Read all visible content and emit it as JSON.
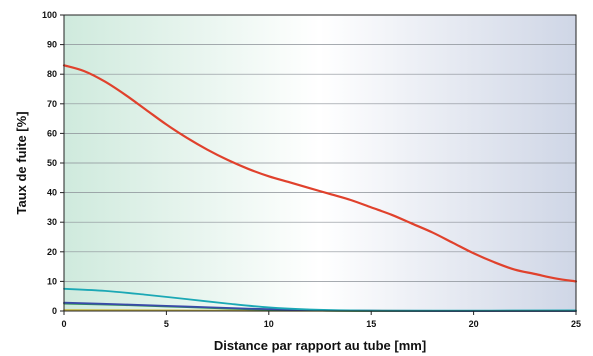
{
  "chart_data": {
    "type": "line",
    "title": "",
    "xlabel": "Distance par rapport au tube [mm]",
    "ylabel": "Taux de fuite [%]",
    "xlim": [
      0,
      25
    ],
    "ylim": [
      0,
      100
    ],
    "x_ticks": [
      0,
      5,
      10,
      15,
      20,
      25
    ],
    "y_ticks": [
      0,
      10,
      20,
      30,
      40,
      50,
      60,
      70,
      80,
      90,
      100
    ],
    "grid": true,
    "legend": "none",
    "background_gradient": [
      "#cfeadd",
      "#ffffff",
      "#cfd6e6"
    ],
    "series": [
      {
        "color": "#e0412c",
        "points": [
          [
            0,
            83
          ],
          [
            1,
            81
          ],
          [
            2,
            77.5
          ],
          [
            3,
            73
          ],
          [
            4,
            68
          ],
          [
            5,
            63
          ],
          [
            6,
            58.5
          ],
          [
            7,
            54.5
          ],
          [
            8,
            51
          ],
          [
            9,
            48
          ],
          [
            10,
            45.5
          ],
          [
            11,
            43.5
          ],
          [
            12,
            41.5
          ],
          [
            13,
            39.5
          ],
          [
            14,
            37.5
          ],
          [
            15,
            35
          ],
          [
            16,
            32.5
          ],
          [
            17,
            29.5
          ],
          [
            18,
            26.5
          ],
          [
            19,
            23
          ],
          [
            20,
            19.5
          ],
          [
            21,
            16.5
          ],
          [
            22,
            14
          ],
          [
            23,
            12.5
          ],
          [
            24,
            11
          ],
          [
            25,
            10
          ]
        ]
      },
      {
        "color": "#1ba8b5",
        "points": [
          [
            0,
            7.5
          ],
          [
            2,
            6.8
          ],
          [
            4,
            5.5
          ],
          [
            6,
            4
          ],
          [
            8,
            2.5
          ],
          [
            10,
            1.2
          ],
          [
            12,
            0.5
          ],
          [
            14,
            0.2
          ],
          [
            17,
            0.1
          ],
          [
            25,
            0.2
          ]
        ]
      },
      {
        "color": "#3a4aa8",
        "points": [
          [
            0,
            2.8
          ],
          [
            3,
            2.2
          ],
          [
            6,
            1.5
          ],
          [
            9,
            0.8
          ],
          [
            12,
            0.3
          ],
          [
            15,
            0.1
          ],
          [
            20,
            0
          ],
          [
            25,
            0
          ]
        ]
      },
      {
        "color": "#2f8f5a",
        "points": [
          [
            0,
            2.5
          ],
          [
            3,
            2
          ],
          [
            6,
            1.3
          ],
          [
            9,
            0.6
          ],
          [
            12,
            0.2
          ],
          [
            15,
            0
          ],
          [
            25,
            0
          ]
        ]
      },
      {
        "color": "#c9b43a",
        "points": [
          [
            0,
            0.3
          ],
          [
            5,
            0.2
          ],
          [
            10,
            0.1
          ],
          [
            25,
            0
          ]
        ]
      }
    ]
  }
}
